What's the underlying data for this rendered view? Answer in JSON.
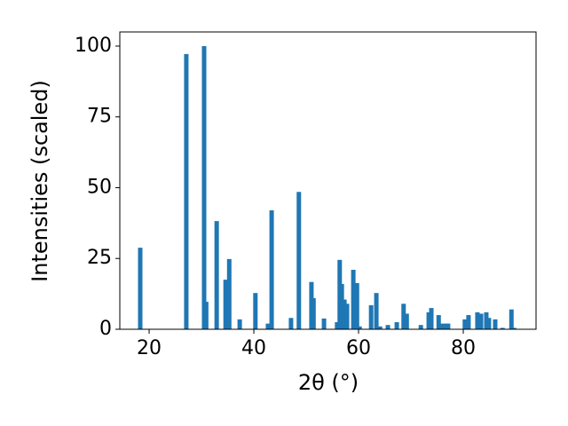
{
  "chart_data": {
    "type": "bar",
    "x_label": "2θ (°)",
    "y_label": "Intensities (scaled)",
    "x": [
      18.3,
      27.1,
      30.5,
      30.9,
      32.9,
      34.6,
      35.3,
      37.3,
      40.3,
      42.7,
      43.4,
      47.1,
      48.6,
      51.0,
      51.4,
      53.4,
      55.9,
      56.4,
      56.8,
      57.3,
      57.8,
      59.0,
      59.7,
      60.2,
      62.4,
      63.4,
      64.1,
      65.6,
      67.3,
      68.6,
      69.2,
      71.9,
      73.4,
      73.9,
      75.3,
      75.9,
      76.6,
      77.1,
      80.3,
      81.0,
      82.7,
      83.4,
      84.4,
      84.9,
      86.1,
      87.5,
      89.2,
      89.7
    ],
    "values": [
      28.8,
      97.2,
      100,
      9.7,
      38.2,
      17.5,
      24.8,
      3.5,
      12.8,
      2,
      42,
      4,
      48.5,
      16.7,
      11,
      3.8,
      2.5,
      24.5,
      16,
      10.5,
      9,
      21,
      16.3,
      1,
      8.5,
      12.8,
      1,
      1.5,
      2.5,
      9,
      5.5,
      1.5,
      6,
      7.5,
      5,
      2,
      2,
      2,
      3.5,
      5,
      6,
      5.5,
      6,
      4,
      3.5,
      0.5,
      7,
      0.5
    ],
    "color": "#1f77b4",
    "xlim": [
      14.4,
      93.9
    ],
    "xticks": [
      20,
      40,
      60,
      80
    ],
    "ylim": [
      0,
      105
    ],
    "yticks": [
      0,
      25,
      50,
      75,
      100
    ],
    "grid": false
  }
}
